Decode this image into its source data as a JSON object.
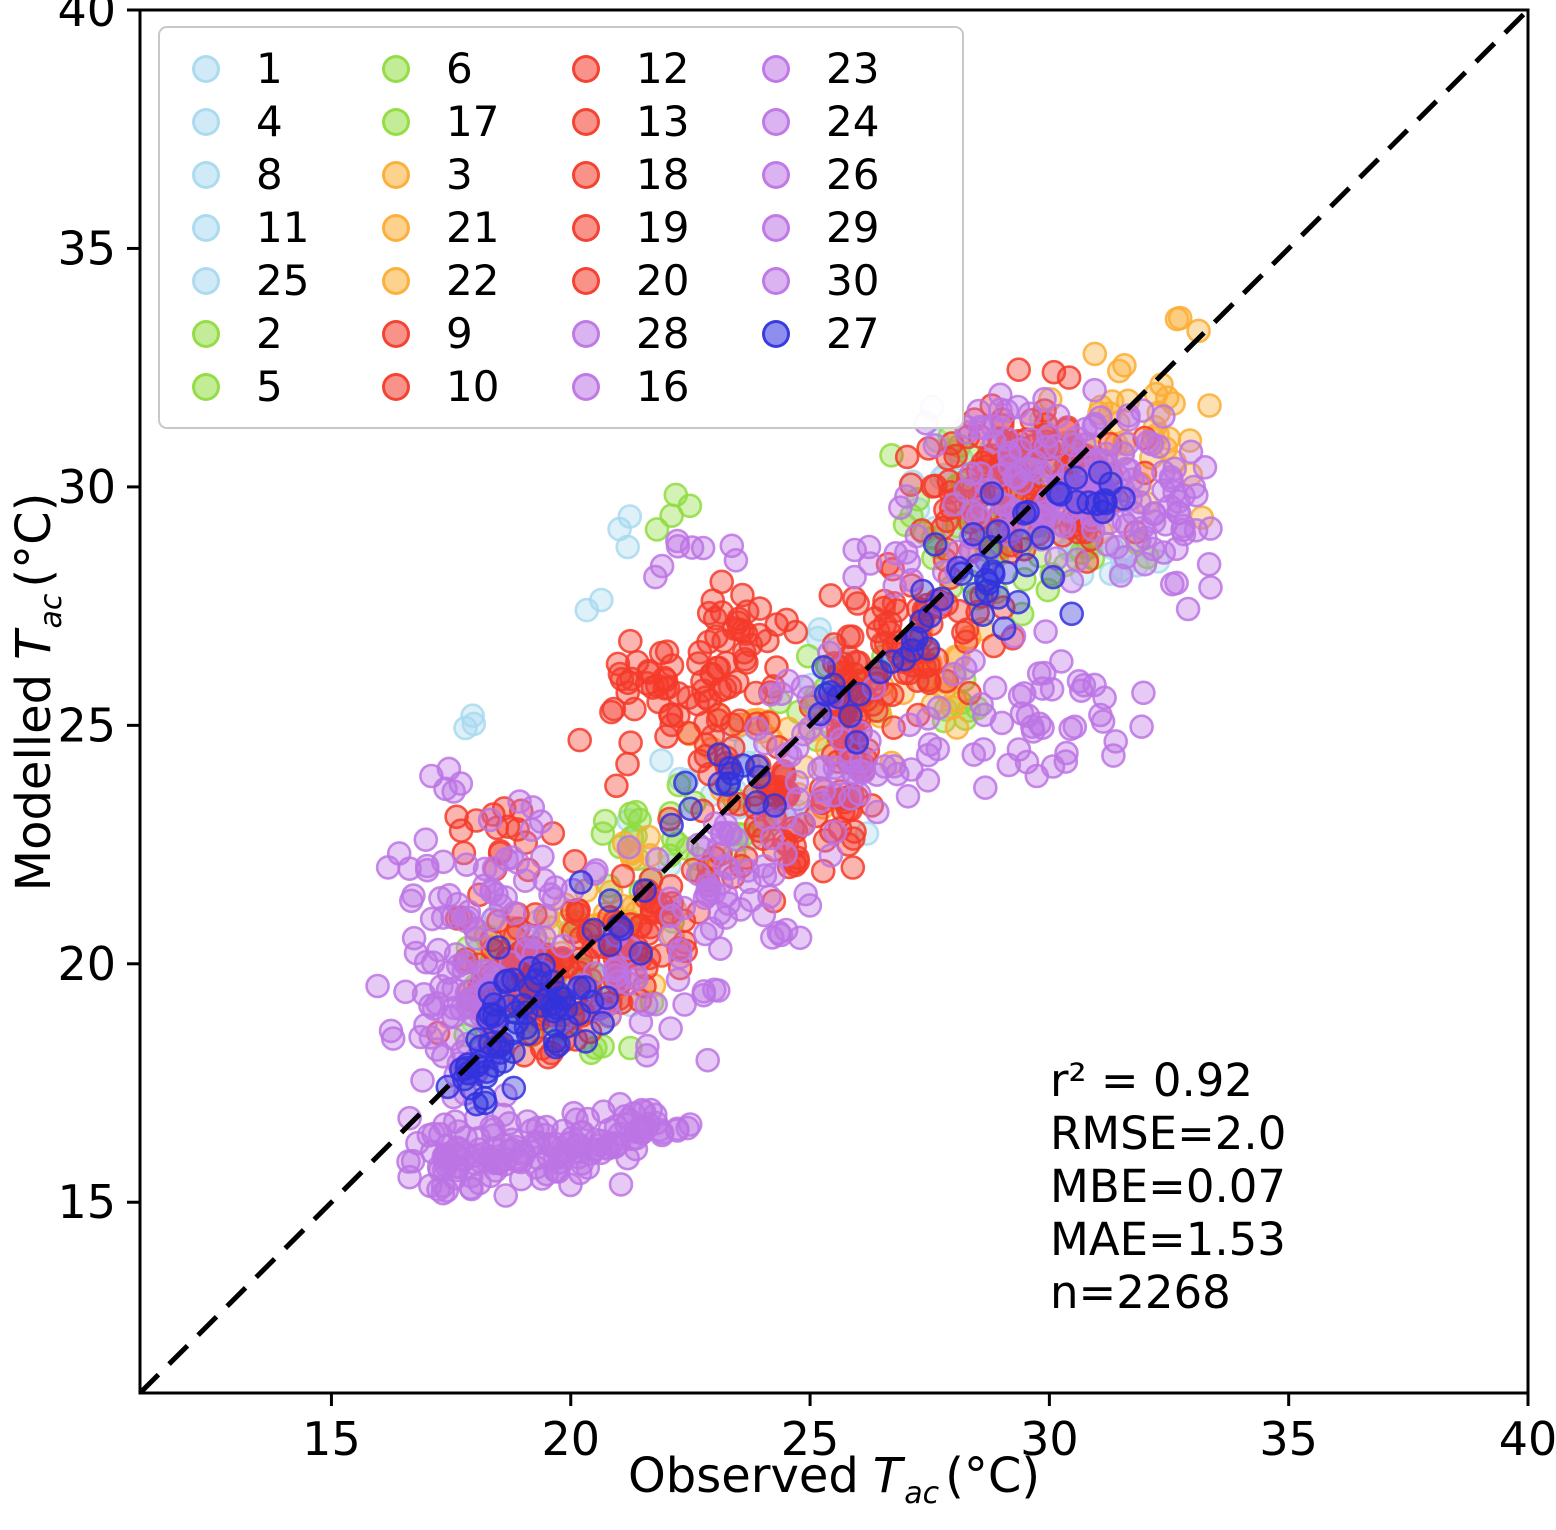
{
  "chart_data": {
    "type": "scatter",
    "title": "",
    "xlabel_prefix": "Observed",
    "ylabel_prefix": "Modelled",
    "symbol": "T",
    "symbol_sub": "ac",
    "unit_suffix": "(°C)",
    "xlim": [
      11,
      40
    ],
    "ylim": [
      11,
      40
    ],
    "xticks": [
      "15",
      "20",
      "25",
      "30",
      "35",
      "40"
    ],
    "yticks": [
      "15",
      "20",
      "25",
      "30",
      "35",
      "40"
    ],
    "identity_line": true,
    "grid": false,
    "legend_position": "upper-left",
    "stats_lines": [
      "r² = 0.92",
      "RMSE=2.0",
      "MBE=0.07",
      "MAE=1.53",
      "n=2268"
    ],
    "colors": {
      "lightblue": "#A9D9F0",
      "green": "#8FDC3F",
      "orange": "#FBAD33",
      "red": "#F43B2A",
      "purple": "#BC74E4",
      "blue": "#3232DE"
    },
    "legend": {
      "columns": [
        [
          {
            "label": "1",
            "c": "lightblue"
          },
          {
            "label": "4",
            "c": "lightblue"
          },
          {
            "label": "8",
            "c": "lightblue"
          },
          {
            "label": "11",
            "c": "lightblue"
          },
          {
            "label": "25",
            "c": "lightblue"
          },
          {
            "label": "2",
            "c": "green"
          },
          {
            "label": "5",
            "c": "green"
          }
        ],
        [
          {
            "label": "6",
            "c": "green"
          },
          {
            "label": "17",
            "c": "green"
          },
          {
            "label": "3",
            "c": "orange"
          },
          {
            "label": "21",
            "c": "orange"
          },
          {
            "label": "22",
            "c": "orange"
          },
          {
            "label": "9",
            "c": "red"
          },
          {
            "label": "10",
            "c": "red"
          }
        ],
        [
          {
            "label": "12",
            "c": "red"
          },
          {
            "label": "13",
            "c": "red"
          },
          {
            "label": "18",
            "c": "red"
          },
          {
            "label": "19",
            "c": "red"
          },
          {
            "label": "20",
            "c": "red"
          },
          {
            "label": "28",
            "c": "purple"
          },
          {
            "label": "16",
            "c": "purple"
          }
        ],
        [
          {
            "label": "23",
            "c": "purple"
          },
          {
            "label": "24",
            "c": "purple"
          },
          {
            "label": "26",
            "c": "purple"
          },
          {
            "label": "29",
            "c": "purple"
          },
          {
            "label": "30",
            "c": "purple"
          },
          {
            "label": "27",
            "c": "blue"
          }
        ]
      ]
    },
    "groups": [
      {
        "key": "lightblue",
        "entries": [
          "1",
          "4",
          "8",
          "11",
          "25"
        ],
        "clusters": [
          [
            19.5,
            19.5,
            1.1,
            0.9,
            28
          ],
          [
            23.5,
            23.3,
            1.3,
            1.0,
            22
          ],
          [
            29.3,
            29.8,
            1.4,
            1.0,
            40
          ],
          [
            31.6,
            28.9,
            0.7,
            0.5,
            10
          ],
          [
            20.6,
            27.5,
            0.15,
            0.15,
            2
          ],
          [
            21.3,
            29.0,
            0.25,
            0.3,
            3
          ],
          [
            18.2,
            25.2,
            0.3,
            0.3,
            3
          ],
          [
            26.5,
            26.3,
            0.8,
            0.6,
            12
          ]
        ]
      },
      {
        "key": "green",
        "entries": [
          "2",
          "5",
          "6",
          "17"
        ],
        "clusters": [
          [
            19.6,
            19.3,
            1.1,
            0.9,
            32
          ],
          [
            22.3,
            22.2,
            1.1,
            0.9,
            28
          ],
          [
            28.6,
            29.2,
            1.2,
            1.0,
            42
          ],
          [
            30.4,
            28.6,
            0.9,
            0.7,
            18
          ],
          [
            22.1,
            29.7,
            0.25,
            0.4,
            4
          ],
          [
            25.4,
            25.7,
            0.8,
            0.6,
            14
          ],
          [
            27.9,
            25.3,
            0.5,
            0.4,
            8
          ]
        ]
      },
      {
        "key": "orange",
        "entries": [
          "3",
          "21",
          "22"
        ],
        "clusters": [
          [
            20.6,
            20.3,
            1.2,
            0.9,
            28
          ],
          [
            24.4,
            24.2,
            1.2,
            0.9,
            22
          ],
          [
            27.4,
            26.1,
            1.1,
            0.8,
            22
          ],
          [
            30.7,
            30.8,
            1.3,
            1.0,
            42
          ],
          [
            32.4,
            31.4,
            0.6,
            0.7,
            12
          ],
          [
            32.9,
            33.4,
            0.25,
            0.2,
            3
          ],
          [
            21.1,
            22.4,
            0.5,
            0.4,
            6
          ],
          [
            18.9,
            19.6,
            0.6,
            0.5,
            10
          ]
        ]
      },
      {
        "key": "red",
        "entries": [
          "9",
          "10",
          "12",
          "13",
          "18",
          "19",
          "20"
        ],
        "clusters": [
          [
            19.3,
            19.6,
            1.1,
            0.9,
            110
          ],
          [
            21.4,
            20.6,
            0.9,
            0.8,
            55
          ],
          [
            22.6,
            25.6,
            1.3,
            1.0,
            75
          ],
          [
            25.8,
            24.9,
            0.35,
            1.4,
            65
          ],
          [
            24.0,
            23.1,
            1.1,
            0.9,
            55
          ],
          [
            29.4,
            30.2,
            1.4,
            1.1,
            130
          ],
          [
            27.4,
            27.4,
            1.1,
            0.9,
            45
          ],
          [
            18.6,
            22.4,
            0.7,
            0.7,
            18
          ],
          [
            26.8,
            25.9,
            0.8,
            0.6,
            25
          ],
          [
            23.3,
            26.8,
            0.8,
            0.6,
            25
          ]
        ]
      },
      {
        "key": "purple",
        "entries": [
          "16",
          "23",
          "24",
          "26",
          "28",
          "29",
          "30"
        ],
        "clusters": [
          [
            19.3,
            16.1,
            1.6,
            0.45,
            110
          ],
          [
            21.3,
            16.6,
            0.8,
            0.3,
            30
          ],
          [
            17.4,
            15.8,
            0.6,
            0.35,
            25
          ],
          [
            18.4,
            21.4,
            1.2,
            1.4,
            80
          ],
          [
            17.6,
            18.6,
            0.8,
            0.8,
            45
          ],
          [
            23.4,
            21.4,
            1.2,
            1.1,
            55
          ],
          [
            25.6,
            24.4,
            1.2,
            1.1,
            55
          ],
          [
            30.3,
            30.2,
            1.5,
            1.1,
            135
          ],
          [
            29.9,
            25.4,
            1.2,
            0.9,
            45
          ],
          [
            32.4,
            29.2,
            0.7,
            0.9,
            35
          ],
          [
            17.3,
            23.9,
            0.25,
            0.25,
            4
          ],
          [
            22.4,
            28.6,
            0.5,
            0.4,
            8
          ],
          [
            27.1,
            28.5,
            0.8,
            0.6,
            15
          ],
          [
            21.5,
            19.2,
            0.8,
            0.7,
            25
          ]
        ]
      },
      {
        "key": "blue",
        "entries": [
          "27"
        ],
        "clusters": [
          [
            19.2,
            19.1,
            0.8,
            0.7,
            48
          ],
          [
            18.1,
            17.7,
            0.5,
            0.5,
            22
          ],
          [
            23.4,
            23.6,
            0.8,
            0.7,
            14
          ],
          [
            25.6,
            25.4,
            0.6,
            0.5,
            10
          ],
          [
            28.8,
            28.5,
            1.0,
            0.8,
            28
          ],
          [
            30.8,
            29.8,
            0.6,
            0.5,
            12
          ],
          [
            27.2,
            26.9,
            0.5,
            0.4,
            8
          ],
          [
            21.0,
            20.9,
            0.5,
            0.5,
            8
          ]
        ]
      }
    ]
  }
}
